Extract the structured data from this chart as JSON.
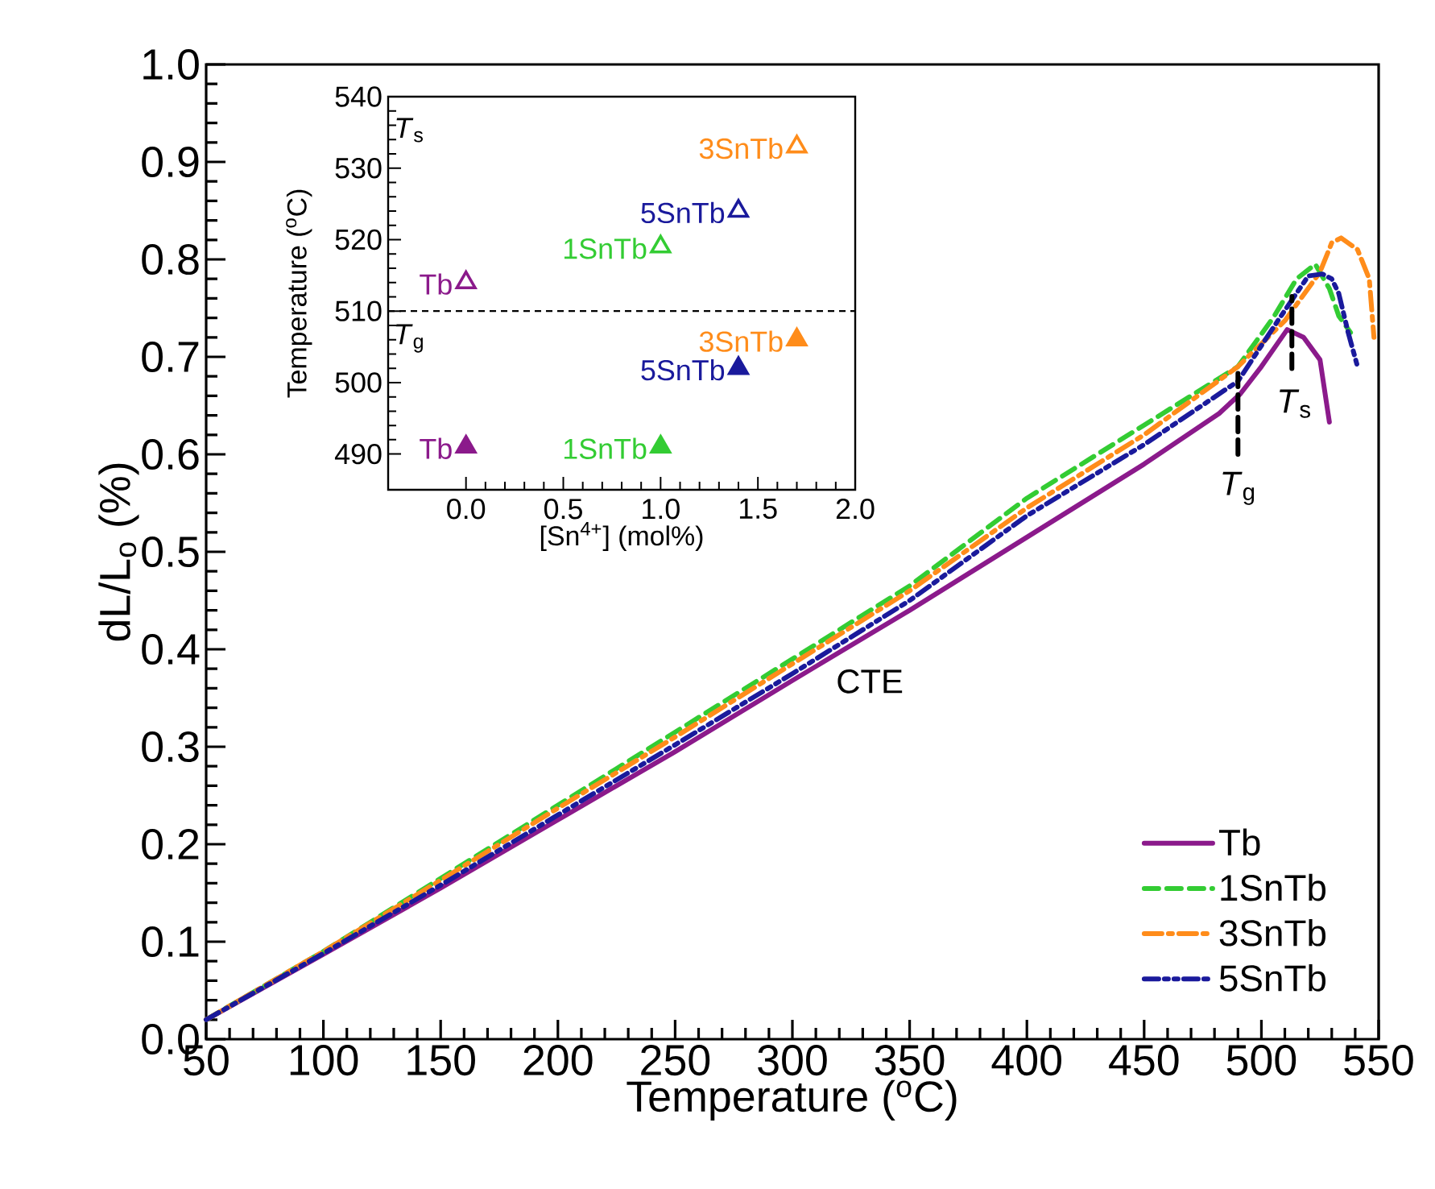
{
  "chart_data": [
    {
      "type": "line",
      "xlabel": "Temperature ($^{o}$C)",
      "ylabel": "dL/L$_{o}$ (%)",
      "xlim": [
        50,
        550
      ],
      "xticks": [
        50,
        100,
        150,
        200,
        250,
        300,
        350,
        400,
        450,
        500,
        550
      ],
      "ylim": [
        0,
        1
      ],
      "yticks": [
        {
          "value": 0,
          "label": "0.0"
        },
        0.1,
        0.2,
        0.3,
        0.4,
        0.5,
        0.6,
        0.7,
        0.8,
        0.9,
        {
          "value": 1,
          "label": "1.0"
        }
      ],
      "legend": "bottom right",
      "grid": false,
      "marker": "none",
      "series": [
        {
          "name": "Tb",
          "color": "#8b1a8b",
          "line_style": "solid",
          "x": [
            50,
            100,
            150,
            200,
            250,
            300,
            350,
            400,
            450,
            482,
            491,
            500,
            511,
            518,
            525,
            529
          ],
          "values": [
            0.02,
            0.087,
            0.155,
            0.225,
            0.295,
            0.368,
            0.44,
            0.515,
            0.59,
            0.642,
            0.662,
            0.69,
            0.728,
            0.72,
            0.697,
            0.633
          ]
        },
        {
          "name": "1SnTb",
          "color": "#33cc33",
          "line_style": "dashed",
          "x": [
            50,
            100,
            150,
            200,
            250,
            300,
            350,
            400,
            450,
            490,
            505,
            515,
            523,
            529,
            533,
            538
          ],
          "values": [
            0.02,
            0.09,
            0.165,
            0.24,
            0.315,
            0.39,
            0.465,
            0.555,
            0.63,
            0.69,
            0.74,
            0.78,
            0.795,
            0.77,
            0.742,
            0.725
          ]
        },
        {
          "name": "3SnTb",
          "color": "#ff8c1a",
          "line_style": "dashdot",
          "x": [
            50,
            100,
            150,
            200,
            250,
            300,
            350,
            400,
            450,
            490,
            510,
            525,
            530,
            534,
            541,
            546,
            548
          ],
          "values": [
            0.02,
            0.09,
            0.163,
            0.237,
            0.31,
            0.385,
            0.46,
            0.545,
            0.62,
            0.69,
            0.737,
            0.787,
            0.817,
            0.822,
            0.81,
            0.78,
            0.72
          ]
        },
        {
          "name": "5SnTb",
          "color": "#1a1a9c",
          "line_style": "dashdotdot",
          "x": [
            50,
            100,
            150,
            200,
            250,
            300,
            350,
            400,
            450,
            490,
            507,
            520,
            526,
            530,
            533,
            537,
            541
          ],
          "values": [
            0.02,
            0.088,
            0.158,
            0.23,
            0.302,
            0.375,
            0.45,
            0.537,
            0.61,
            0.675,
            0.737,
            0.783,
            0.785,
            0.78,
            0.765,
            0.725,
            0.69
          ]
        },
        {
          "color": "#000000",
          "line_style": "dashed",
          "x": [
            490,
            490
          ],
          "values": [
            0.6,
            0.683
          ]
        },
        {
          "color": "#000000",
          "line_style": "dashed",
          "x": [
            513,
            513
          ],
          "values": [
            0.688,
            0.762
          ]
        }
      ],
      "annotations": [
        "CTE",
        "*T*$_{g}$",
        "*T*$_{s}$"
      ]
    },
    {
      "type": "scatter",
      "xlabel": "[Sn$^{4+}$] (mol%)",
      "ylabel": "Temperature ($^{o}$C)",
      "xlim": [
        -0.4,
        2.0
      ],
      "xticks": [
        {
          "value": 0,
          "label": "0.0"
        },
        0.5,
        {
          "value": 1,
          "label": "1.0"
        },
        1.5,
        {
          "value": 2,
          "label": "2.0"
        }
      ],
      "ylim": [
        485,
        540
      ],
      "yticks": [
        490,
        500,
        510,
        520,
        530,
        540
      ],
      "legend": false,
      "grid": false,
      "marker": "triangle",
      "ref_lines": [
        {
          "axis": "y",
          "value": 510,
          "line_style": "dashed",
          "color": "#000000"
        }
      ],
      "series": [
        {
          "name": "Tb",
          "color": "#8b1a8b",
          "marker": "triangle-open",
          "x": [
            0
          ],
          "values": [
            514
          ]
        },
        {
          "name": "1SnTb",
          "color": "#33cc33",
          "marker": "triangle-open",
          "x": [
            1
          ],
          "values": [
            519
          ]
        },
        {
          "name": "5SnTb",
          "color": "#1a1a9c",
          "marker": "triangle-open",
          "x": [
            1.4
          ],
          "values": [
            524
          ]
        },
        {
          "name": "3SnTb",
          "color": "#ff8c1a",
          "marker": "triangle-open",
          "x": [
            1.7
          ],
          "values": [
            533
          ]
        },
        {
          "name": "Tb",
          "color": "#8b1a8b",
          "marker": "triangle",
          "x": [
            0
          ],
          "values": [
            491
          ]
        },
        {
          "name": "1SnTb",
          "color": "#33cc33",
          "marker": "triangle",
          "x": [
            1
          ],
          "values": [
            491
          ]
        },
        {
          "name": "5SnTb",
          "color": "#1a1a9c",
          "marker": "triangle",
          "x": [
            1.4
          ],
          "values": [
            502
          ]
        },
        {
          "name": "3SnTb",
          "color": "#ff8c1a",
          "marker": "triangle",
          "x": [
            1.7
          ],
          "values": [
            506
          ]
        }
      ],
      "annotations": [
        "*T*$_{s}$",
        "*T*$_{g}$"
      ]
    }
  ]
}
